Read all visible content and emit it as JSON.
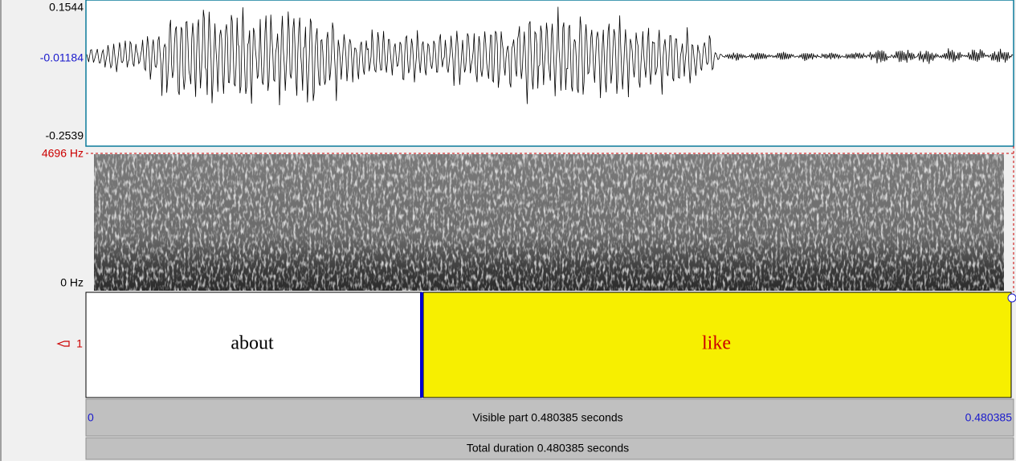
{
  "waveform": {
    "max_label": "0.1544",
    "mid_label": "-0.01184",
    "min_label": "-0.2539"
  },
  "spectrogram": {
    "top_label": "4696 Hz",
    "bottom_label": "0 Hz"
  },
  "tier": {
    "number": "1",
    "intervals": [
      {
        "text": "about"
      },
      {
        "text": "like"
      }
    ]
  },
  "footer": {
    "start": "0",
    "visible_part": "Visible part 0.480385 seconds",
    "end": "0.480385",
    "total_duration": "Total duration 0.480385 seconds"
  }
}
